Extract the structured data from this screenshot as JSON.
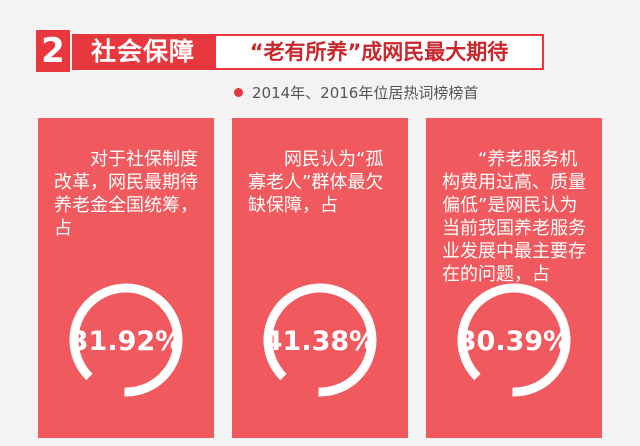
{
  "header": {
    "number": "2",
    "tag": "社会保障",
    "headline": "“老有所养”成网民最大期待",
    "subtitle": "2014年、2016年位居热词榜榜首"
  },
  "cards": [
    {
      "text": "对于社保制度改革，网民最期待养老金全国统筹，占",
      "value": "31.92%"
    },
    {
      "text": "网民认为“孤寡老人”群体最欠缺保障，占",
      "value": "41.38%"
    },
    {
      "text": "“养老服务机构费用过高、质量偏低”是网民认为当前我国养老服务业发展中最主要存在的问题，占",
      "value": "30.39%"
    }
  ]
}
